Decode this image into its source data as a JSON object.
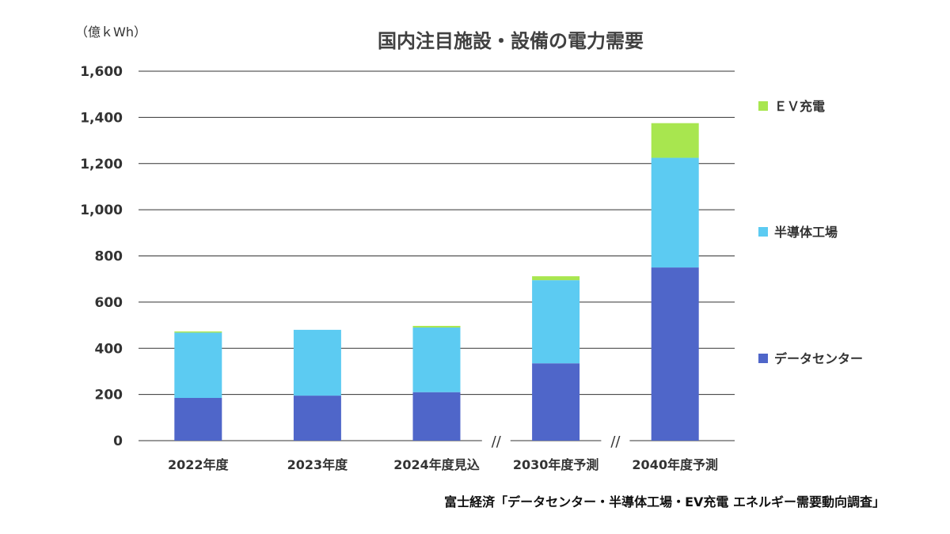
{
  "chart_data": {
    "type": "bar",
    "stacked": true,
    "title": "国内注目施設・設備の電力需要",
    "unit_label": "（億ｋWh）",
    "categories": [
      "2022年度",
      "2023年度",
      "2024年度見込",
      "2030年度予測",
      "2040年度予測"
    ],
    "series": [
      {
        "name": "データセンター",
        "color": "#4f66c9",
        "values": [
          185,
          195,
          210,
          335,
          750
        ]
      },
      {
        "name": "半導体工場",
        "color": "#5ccbf2",
        "values": [
          283,
          285,
          280,
          360,
          475
        ]
      },
      {
        "name": "ＥＶ充電",
        "color": "#a8e64f",
        "values": [
          5,
          0,
          7,
          17,
          150
        ]
      }
    ],
    "ylim": [
      0,
      1600
    ],
    "yticks": [
      "0",
      "200",
      "400",
      "600",
      "800",
      "1,000",
      "1,200",
      "1,400",
      "1,600"
    ],
    "ytick_values": [
      0,
      200,
      400,
      600,
      800,
      1000,
      1200,
      1400,
      1600
    ],
    "axis_break_marks": [
      "//",
      "//"
    ],
    "grid": true,
    "legend_position": "right"
  },
  "source": "富士経済「データセンター・半導体工場・EV充電 エネルギー需要動向調査」"
}
